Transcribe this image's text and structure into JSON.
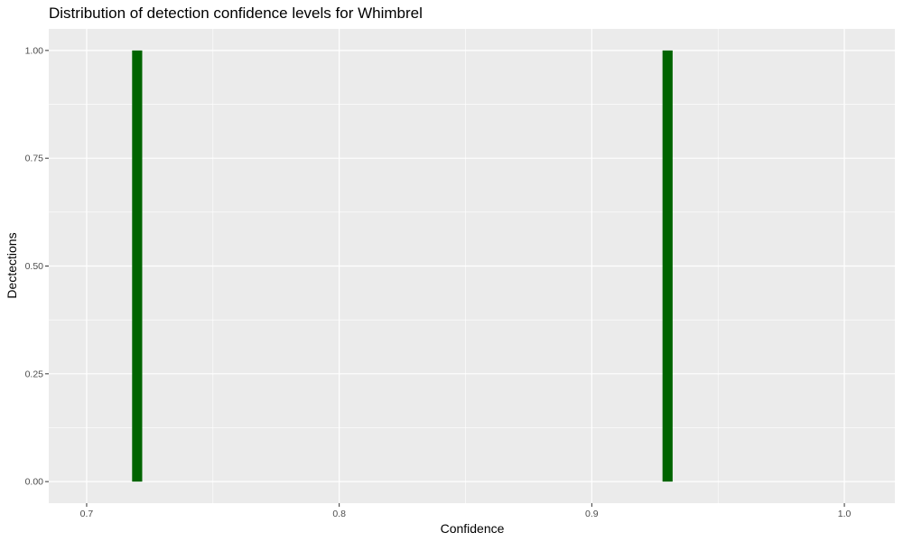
{
  "chart_data": {
    "type": "bar",
    "title": "Distribution of detection confidence levels for Whimbrel",
    "xlabel": "Confidence",
    "ylabel": "Dectections",
    "xlim": [
      0.685,
      1.02
    ],
    "ylim": [
      -0.05,
      1.05
    ],
    "x_ticks": [
      {
        "value": 0.7,
        "label": "0.7"
      },
      {
        "value": 0.8,
        "label": "0.8"
      },
      {
        "value": 0.9,
        "label": "0.9"
      },
      {
        "value": 1.0,
        "label": "1.0"
      }
    ],
    "y_ticks": [
      {
        "value": 0.0,
        "label": "0.00"
      },
      {
        "value": 0.25,
        "label": "0.25"
      },
      {
        "value": 0.5,
        "label": "0.50"
      },
      {
        "value": 0.75,
        "label": "0.75"
      },
      {
        "value": 1.0,
        "label": "1.00"
      }
    ],
    "x_minor_ticks": [
      0.75,
      0.85,
      0.95
    ],
    "y_minor_ticks": [
      0.125,
      0.375,
      0.625,
      0.875
    ],
    "bin_width": 0.004,
    "bars": [
      {
        "x": 0.72,
        "count": 1
      },
      {
        "x": 0.93,
        "count": 1
      }
    ],
    "grid": true,
    "colors": {
      "bar": "#006400",
      "panel": "#ebebeb",
      "grid": "#ffffff"
    }
  }
}
